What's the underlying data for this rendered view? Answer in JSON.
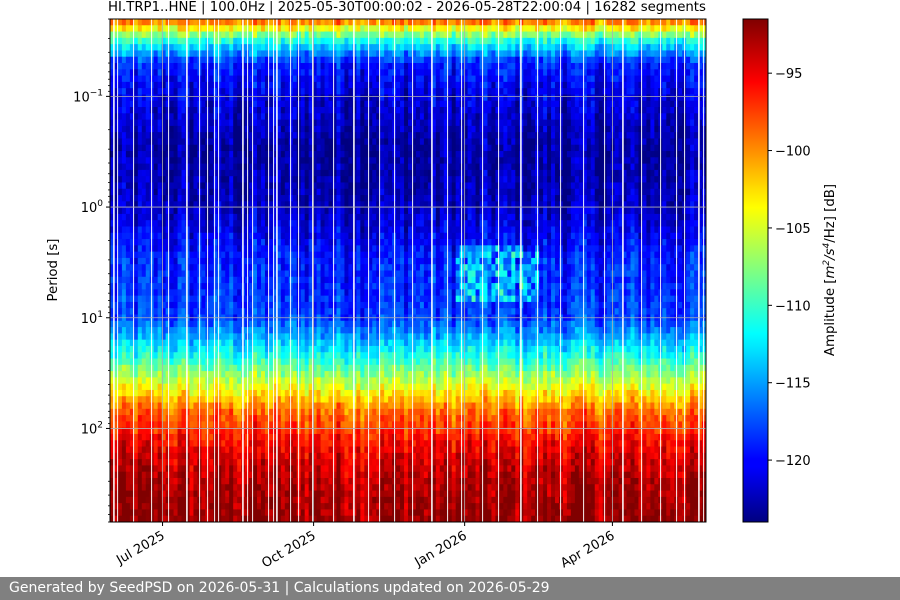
{
  "chart_data": {
    "type": "heatmap",
    "title": "HI.TRP1..HNE | 100.0Hz | 2025-05-30T00:00:02 - 2026-05-28T22:00:04 | 16282 segments",
    "xlabel": "",
    "ylabel": "Period [s]",
    "x_axis": {
      "type": "date",
      "range": [
        "2025-05-30",
        "2026-05-28"
      ],
      "ticks": [
        {
          "date": "2025-07-01",
          "label": "Jul 2025"
        },
        {
          "date": "2025-10-01",
          "label": "Oct 2025"
        },
        {
          "date": "2026-01-01",
          "label": "Jan 2026"
        },
        {
          "date": "2026-04-01",
          "label": "Apr 2026"
        }
      ]
    },
    "y_axis": {
      "scale": "log",
      "inverted": true,
      "range": [
        0.02,
        700
      ],
      "ticks": [
        {
          "value": 0.1,
          "base": "10",
          "exp": "−1"
        },
        {
          "value": 1,
          "base": "10",
          "exp": "0"
        },
        {
          "value": 10,
          "base": "10",
          "exp": "1"
        },
        {
          "value": 100,
          "base": "10",
          "exp": "2"
        }
      ]
    },
    "grid": true,
    "colorbar": {
      "label_prefix": "Amplitude [",
      "label_unit": "m",
      "label_sup1": "2",
      "label_mid": "/s",
      "label_sup2": "4",
      "label_end": "/Hz] [dB]",
      "colormap": "jet",
      "range": [
        -124,
        -91.5
      ],
      "ticks": [
        {
          "value": -95,
          "label": "−95"
        },
        {
          "value": -100,
          "label": "−100"
        },
        {
          "value": -105,
          "label": "−105"
        },
        {
          "value": -110,
          "label": "−110"
        },
        {
          "value": -115,
          "label": "−115"
        },
        {
          "value": -120,
          "label": "−120"
        }
      ]
    },
    "amplitude_profile": [
      {
        "period": 0.02,
        "db": -98
      },
      {
        "period": 0.03,
        "db": -110
      },
      {
        "period": 0.05,
        "db": -119
      },
      {
        "period": 0.1,
        "db": -121
      },
      {
        "period": 0.3,
        "db": -123
      },
      {
        "period": 1,
        "db": -122
      },
      {
        "period": 3,
        "db": -119
      },
      {
        "period": 10,
        "db": -118
      },
      {
        "period": 20,
        "db": -112
      },
      {
        "period": 40,
        "db": -105
      },
      {
        "period": 70,
        "db": -99
      },
      {
        "period": 150,
        "db": -95
      },
      {
        "period": 300,
        "db": -93
      },
      {
        "period": 700,
        "db": -92
      }
    ]
  },
  "footer": {
    "text": "Generated by SeedPSD on 2026-05-31 | Calculations updated on 2026-05-29"
  }
}
